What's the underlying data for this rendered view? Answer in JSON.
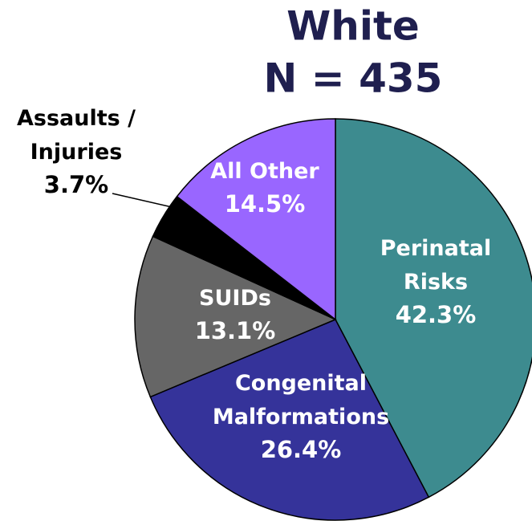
{
  "chart_data": {
    "type": "pie",
    "title": "White",
    "subtitle": "N = 435",
    "categories": [
      "Perinatal\nRisks",
      "Congenital\nMalformations",
      "SUIDs",
      "Assaults /\nInjuries",
      "All Other"
    ],
    "values": [
      42.3,
      26.4,
      13.1,
      3.7,
      14.5
    ],
    "value_labels": [
      "42.3%",
      "26.4%",
      "13.1%",
      "3.7%",
      "14.5%"
    ],
    "colors": [
      "#3d8b8f",
      "#35339a",
      "#666666",
      "#000000",
      "#9966ff"
    ]
  }
}
